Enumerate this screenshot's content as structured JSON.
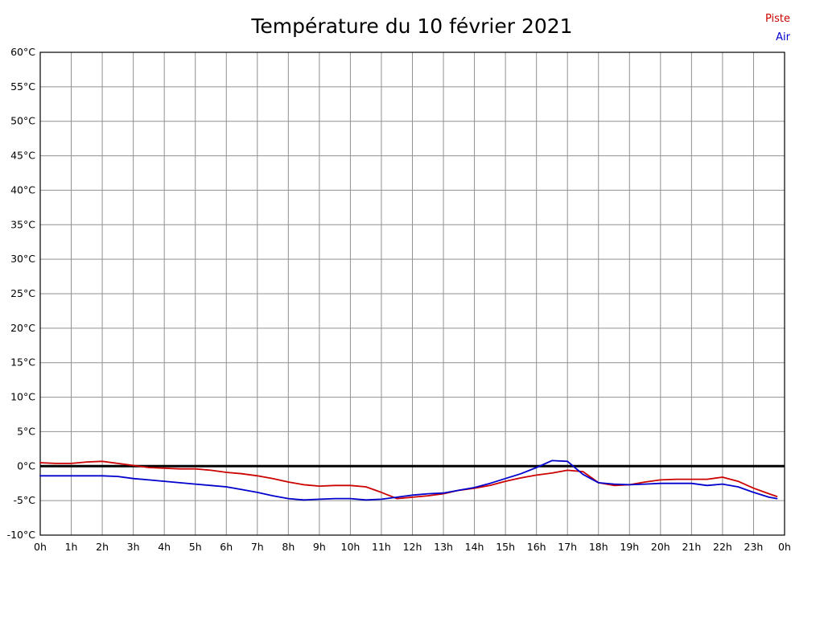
{
  "legend": {
    "piste": "Piste",
    "air": "Air"
  },
  "chart_data": {
    "type": "line",
    "title": "Température du 10 février 2021",
    "xlabel": "",
    "ylabel": "",
    "xlim": [
      0,
      24
    ],
    "ylim": [
      -10,
      60
    ],
    "grid": {
      "on": true,
      "color": "#909090"
    },
    "border_color": "#000000",
    "zero_line": {
      "value": 0,
      "color": "#000000",
      "width": 3
    },
    "y_ticks": [
      "60°C",
      "55°C",
      "50°C",
      "45°C",
      "40°C",
      "35°C",
      "30°C",
      "25°C",
      "20°C",
      "15°C",
      "10°C",
      "5°C",
      "0°C",
      "-5°C",
      "-10°C"
    ],
    "y_tick_values": [
      60,
      55,
      50,
      45,
      40,
      35,
      30,
      25,
      20,
      15,
      10,
      5,
      0,
      -5,
      -10
    ],
    "x_ticks": [
      "0h",
      "1h",
      "2h",
      "3h",
      "4h",
      "5h",
      "6h",
      "7h",
      "8h",
      "9h",
      "10h",
      "11h",
      "12h",
      "13h",
      "14h",
      "15h",
      "16h",
      "17h",
      "18h",
      "19h",
      "20h",
      "21h",
      "22h",
      "23h",
      "0h"
    ],
    "x_tick_values": [
      0,
      1,
      2,
      3,
      4,
      5,
      6,
      7,
      8,
      9,
      10,
      11,
      12,
      13,
      14,
      15,
      16,
      17,
      18,
      19,
      20,
      21,
      22,
      23,
      24
    ],
    "x": [
      0,
      0.5,
      1,
      1.5,
      2,
      2.5,
      3,
      3.5,
      4,
      4.5,
      5,
      5.5,
      6,
      6.5,
      7,
      7.5,
      8,
      8.5,
      9,
      9.5,
      10,
      10.5,
      11,
      11.5,
      12,
      12.5,
      13,
      13.5,
      14,
      14.5,
      15,
      15.5,
      16,
      16.5,
      17,
      17.5,
      18,
      18.5,
      19,
      19.5,
      20,
      20.5,
      21,
      21.5,
      22,
      22.5,
      23,
      23.5,
      23.75
    ],
    "series": [
      {
        "name": "Piste",
        "color": "#cc0000",
        "values": [
          0.5,
          0.4,
          0.4,
          0.6,
          0.7,
          0.4,
          0.1,
          -0.2,
          -0.3,
          -0.4,
          -0.4,
          -0.6,
          -0.9,
          -1.1,
          -1.4,
          -1.8,
          -2.3,
          -2.7,
          -2.9,
          -2.8,
          -2.8,
          -3.0,
          -3.8,
          -4.7,
          -4.5,
          -4.3,
          -4.0,
          -3.5,
          -3.2,
          -2.8,
          -2.2,
          -1.7,
          -1.3,
          -1.0,
          -0.6,
          -0.8,
          -2.4,
          -2.8,
          -2.7,
          -2.3,
          -2.0,
          -1.9,
          -1.9,
          -1.9,
          -1.6,
          -2.2,
          -3.2,
          -4.0,
          -4.4
        ]
      },
      {
        "name": "Air",
        "color": "#0000cd",
        "values": [
          -1.4,
          -1.4,
          -1.4,
          -1.4,
          -1.4,
          -1.5,
          -1.8,
          -2.0,
          -2.2,
          -2.4,
          -2.6,
          -2.8,
          -3.0,
          -3.4,
          -3.8,
          -4.3,
          -4.7,
          -4.9,
          -4.8,
          -4.7,
          -4.7,
          -4.9,
          -4.8,
          -4.5,
          -4.2,
          -4.0,
          -3.9,
          -3.5,
          -3.1,
          -2.5,
          -1.8,
          -1.1,
          -0.2,
          0.8,
          0.7,
          -1.2,
          -2.4,
          -2.6,
          -2.7,
          -2.6,
          -2.5,
          -2.5,
          -2.5,
          -2.8,
          -2.6,
          -3.0,
          -3.8,
          -4.5,
          -4.7
        ]
      }
    ]
  }
}
